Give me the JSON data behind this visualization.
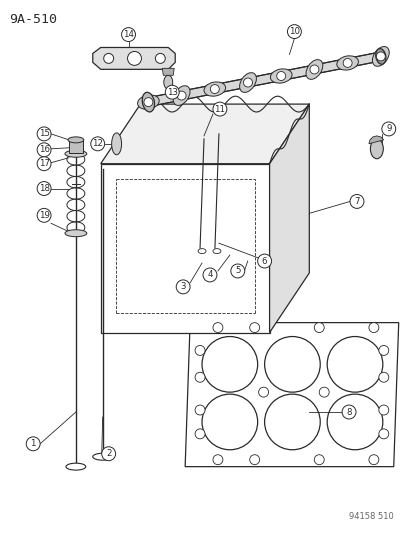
{
  "title": "9A-510",
  "footer": "94158 510",
  "bg_color": "#ffffff",
  "line_color": "#2a2a2a",
  "fig_width": 4.14,
  "fig_height": 5.33,
  "dpi": 100
}
